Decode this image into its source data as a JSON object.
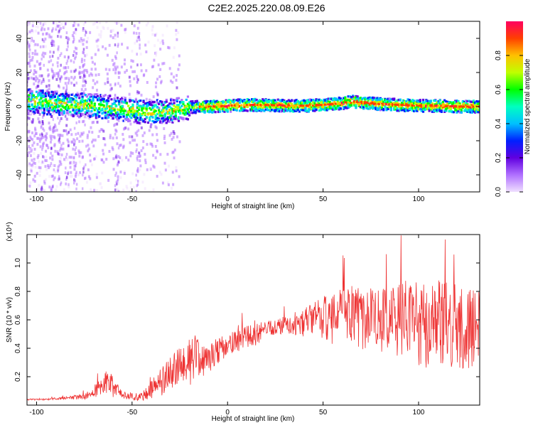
{
  "title": "C2E2.2025.220.08.09.E26",
  "chart_data": [
    {
      "type": "heatmap",
      "xlabel": "Height of straight line (km)",
      "ylabel": "Frequency (Hz)",
      "xlim": [
        -105,
        132
      ],
      "ylim": [
        -50,
        50
      ],
      "xticks": [
        -100,
        -50,
        0,
        50,
        100
      ],
      "yticks": [
        -40,
        -20,
        0,
        20,
        40
      ],
      "ridge": {
        "x": [
          -100,
          -90,
          -80,
          -70,
          -60,
          -50,
          -45,
          -40,
          -35,
          -30,
          -25,
          -20,
          -15,
          -10,
          0,
          10,
          20,
          30,
          40,
          50,
          60,
          65,
          70,
          80,
          90,
          100,
          110,
          120,
          132
        ],
        "y": [
          3,
          2,
          1,
          0.5,
          -0.5,
          -2,
          -3,
          -3.5,
          -3,
          -2.5,
          -1.5,
          -0.5,
          0,
          0,
          0.5,
          1,
          1,
          0.5,
          0.5,
          1,
          2,
          3,
          2.5,
          1.5,
          1,
          0.5,
          0.5,
          0,
          0
        ]
      },
      "colorbar": {
        "label": "Normalized spectral amplitude",
        "range": [
          0,
          1
        ],
        "ticks": [
          "0.0",
          "0.2",
          "0.4",
          "0.6",
          "0.8"
        ],
        "ticks_values": [
          0,
          0.2,
          0.4,
          0.6,
          0.8
        ],
        "colors": [
          "#f0e0ff",
          "#b070ff",
          "#6000e0",
          "#0020ff",
          "#00c0ff",
          "#00ffc0",
          "#00ff00",
          "#c0ff00",
          "#ffc000",
          "#ff4000",
          "#ff0060"
        ]
      }
    },
    {
      "type": "line",
      "xlabel": "Height of straight line (km)",
      "ylabel": "SNR (10 * v/v)",
      "scale_label": "(x10⁴)",
      "xlim": [
        -105,
        132
      ],
      "ylim": [
        0,
        1.2
      ],
      "xticks": [
        -100,
        -50,
        0,
        50,
        100
      ],
      "yticks": [
        "0.2",
        "0.4",
        "0.6",
        "0.8",
        "1.0"
      ],
      "yticks_values": [
        0.2,
        0.4,
        0.6,
        0.8,
        1.0
      ],
      "color": "#ee3333",
      "series": [
        {
          "x": [
            -105,
            -95,
            -85,
            -75,
            -70,
            -66,
            -63,
            -60,
            -56,
            -52,
            -48,
            -45,
            -42,
            -38,
            -34,
            -30,
            -26,
            -22,
            -18,
            -14,
            -10,
            -5,
            0,
            5,
            10,
            15,
            20,
            25,
            30,
            35,
            40,
            45,
            50,
            55,
            60,
            65,
            70,
            75,
            80,
            85,
            90,
            95,
            100,
            105,
            110,
            115,
            120,
            125,
            132
          ],
          "y": [
            0.04,
            0.04,
            0.05,
            0.06,
            0.08,
            0.14,
            0.16,
            0.13,
            0.08,
            0.06,
            0.05,
            0.06,
            0.09,
            0.13,
            0.18,
            0.22,
            0.26,
            0.3,
            0.33,
            0.3,
            0.33,
            0.38,
            0.42,
            0.45,
            0.48,
            0.5,
            0.53,
            0.55,
            0.56,
            0.55,
            0.58,
            0.6,
            0.62,
            0.6,
            0.62,
            0.64,
            0.6,
            0.62,
            0.6,
            0.58,
            0.6,
            0.62,
            0.58,
            0.56,
            0.6,
            0.58,
            0.55,
            0.52,
            0.5
          ],
          "amplitude": [
            0.005,
            0.005,
            0.01,
            0.02,
            0.03,
            0.08,
            0.1,
            0.08,
            0.03,
            0.02,
            0.02,
            0.03,
            0.05,
            0.08,
            0.12,
            0.12,
            0.14,
            0.14,
            0.2,
            0.12,
            0.1,
            0.1,
            0.08,
            0.08,
            0.08,
            0.08,
            0.06,
            0.06,
            0.06,
            0.06,
            0.1,
            0.12,
            0.15,
            0.18,
            0.2,
            0.2,
            0.22,
            0.22,
            0.22,
            0.24,
            0.25,
            0.28,
            0.3,
            0.3,
            0.3,
            0.3,
            0.3,
            0.3,
            0.3
          ]
        }
      ]
    }
  ]
}
